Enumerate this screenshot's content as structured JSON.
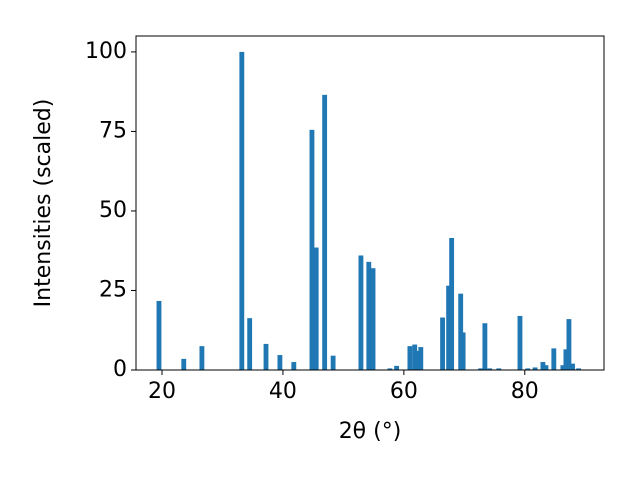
{
  "chart_data": {
    "type": "bar",
    "xlabel": "2θ (°)",
    "ylabel": "Intensities (scaled)",
    "x": [
      19.5,
      23.6,
      26.6,
      33.2,
      34.5,
      37.2,
      39.5,
      41.8,
      44.8,
      45.5,
      46.9,
      48.3,
      52.9,
      54.2,
      54.9,
      57.7,
      58.8,
      61.0,
      61.8,
      62.5,
      62.8,
      66.4,
      67.4,
      67.9,
      69.4,
      69.8,
      72.7,
      73.4,
      74.2,
      75.7,
      79.2,
      80.5,
      81.7,
      83.0,
      83.5,
      84.8,
      86.3,
      86.8,
      87.3,
      87.9,
      88.9
    ],
    "values": [
      21.7,
      3.5,
      7.5,
      100,
      16.3,
      8.2,
      4.7,
      2.5,
      75.5,
      38.5,
      86.5,
      4.5,
      36,
      34,
      32,
      0.5,
      1.3,
      7.5,
      8,
      6,
      7.2,
      16.5,
      26.5,
      41.5,
      24,
      11.8,
      0.5,
      14.7,
      0.5,
      0.5,
      17,
      0.5,
      0.8,
      2.5,
      1.5,
      6.8,
      1.5,
      6.5,
      16,
      2,
      0.5
    ],
    "color": "#1f77b4",
    "xlim": [
      15.7,
      93.1
    ],
    "xticks": [
      20,
      40,
      60,
      80
    ],
    "ylim": [
      0,
      105
    ],
    "yticks": [
      0,
      25,
      50,
      75,
      100
    ]
  }
}
